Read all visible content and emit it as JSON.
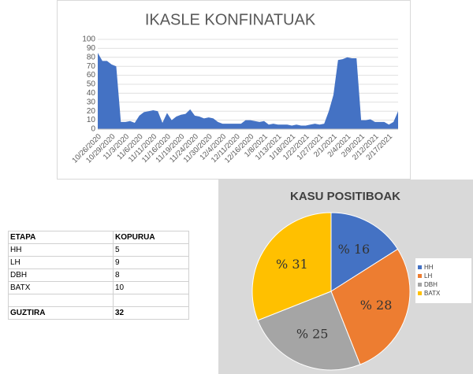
{
  "chart_data": [
    {
      "type": "area",
      "title": "IKASLE KONFINATUAK",
      "categories": [
        "10/26/2020",
        null,
        null,
        "10/29/2020",
        null,
        null,
        "11/3/2020",
        null,
        null,
        "11/6/2020",
        null,
        null,
        "11/11/2020",
        null,
        null,
        "11/16/2020",
        null,
        null,
        "11/19/2020",
        null,
        null,
        "11/24/2020",
        null,
        null,
        "11/30/2020",
        null,
        null,
        "12/4/2020",
        null,
        null,
        "12/11/2020",
        null,
        null,
        "12/16/2020",
        null,
        null,
        "1/8/2021",
        null,
        null,
        "1/13/2021",
        null,
        null,
        "1/18/2021",
        null,
        null,
        "1/22/2021",
        null,
        null,
        "1/27/2021",
        null,
        null,
        "2/1/2021",
        null,
        null,
        "2/4/2021",
        null,
        null,
        "2/9/2021",
        null,
        null,
        "2/12/2021",
        null,
        null,
        "2/17/2021",
        null,
        null
      ],
      "values": [
        85,
        76,
        76,
        72,
        70,
        8,
        8,
        9,
        7,
        15,
        19,
        20,
        21,
        20,
        7,
        18,
        10,
        14,
        16,
        17,
        22,
        15,
        14,
        12,
        13,
        12,
        8,
        6,
        6,
        6,
        6,
        6,
        10,
        10,
        9,
        8,
        9,
        5,
        6,
        5,
        5,
        5,
        4,
        5,
        4,
        4,
        5,
        6,
        5,
        6,
        20,
        38,
        77,
        78,
        80,
        79,
        79,
        10,
        10,
        11,
        8,
        8,
        8,
        5,
        8,
        20
      ],
      "color": "#4472c4",
      "ylim": [
        0,
        100
      ],
      "yticks": [
        0,
        10,
        20,
        30,
        40,
        50,
        60,
        70,
        80,
        90,
        100
      ],
      "grid": true
    },
    {
      "type": "pie",
      "title": "KASU POSITIBOAK",
      "categories": [
        "HH",
        "LH",
        "DBH",
        "BATX"
      ],
      "values": [
        16,
        28,
        25,
        31
      ],
      "value_labels": [
        "% 16",
        "% 28",
        "% 25",
        "% 31"
      ],
      "colors": [
        "#4472c4",
        "#ed7d31",
        "#a5a5a5",
        "#ffc000"
      ],
      "legend": "right"
    }
  ],
  "table": {
    "header": [
      "ETAPA",
      "KOPURUA"
    ],
    "rows": [
      [
        "HH",
        5
      ],
      [
        "LH",
        9
      ],
      [
        "DBH",
        8
      ],
      [
        "BATX",
        10
      ]
    ],
    "total": [
      "GUZTIRA",
      32
    ]
  }
}
